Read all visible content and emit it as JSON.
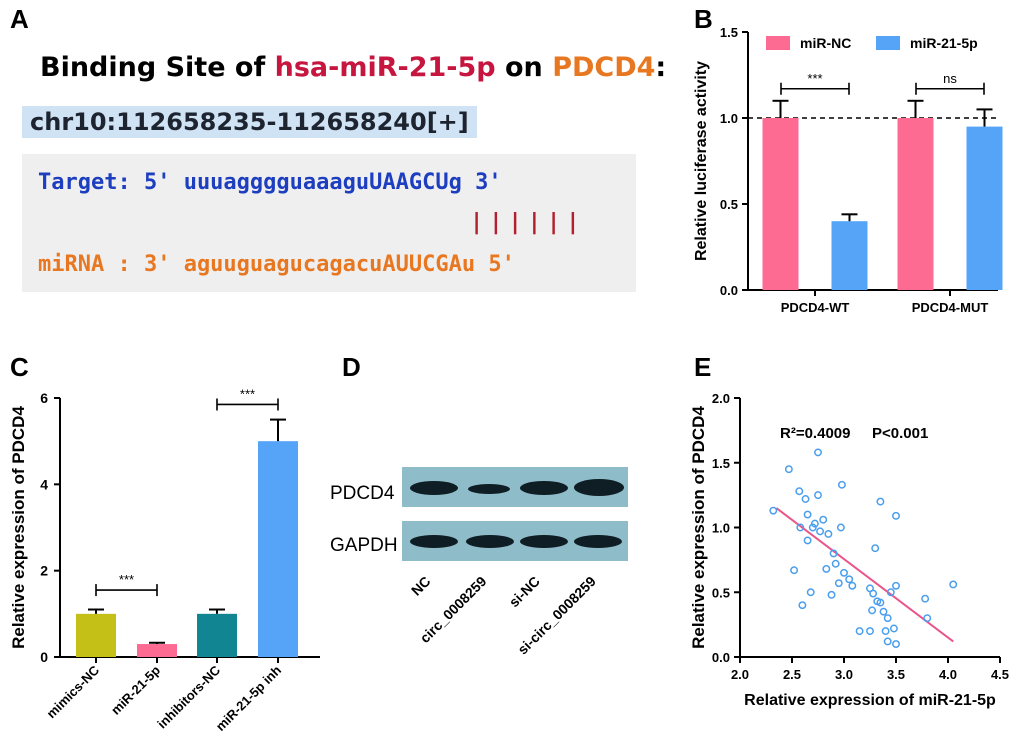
{
  "panels": {
    "a": "A",
    "b": "B",
    "c": "C",
    "d": "D",
    "e": "E"
  },
  "binding": {
    "title_prefix": "Binding Site of ",
    "mirna_name": "hsa-miR-21-5p",
    "title_middle": " on ",
    "gene_name": "PDCD4",
    "title_suffix": ":",
    "locus": "chr10:112658235-112658240[+]",
    "target_line": "Target: 5' uuuagggguaaaguUAAGCUg 3'",
    "pair_marks": "||||||",
    "mirna_line": "miRNA : 3' aguuguagucagacuAUUCGAu 5'"
  },
  "blot": {
    "rows": [
      "PDCD4",
      "GAPDH"
    ],
    "lanes": [
      "NC",
      "circ_0008259",
      "si-NC",
      "si-circ_0008259"
    ]
  },
  "colors": {
    "pink": "#fd6a92",
    "blue": "#56a4f8",
    "olive": "#c4c018",
    "teal": "#118591",
    "fit_line": "#e8558a",
    "scatter_point": "#4a9eee"
  },
  "chart_data": [
    {
      "id": "B",
      "type": "bar",
      "categories": [
        "PDCD4-WT",
        "PDCD4-MUT"
      ],
      "series": [
        {
          "name": "miR-NC",
          "values": [
            1.0,
            1.0
          ],
          "errors": [
            0.1,
            0.1
          ],
          "color": "#fd6a92"
        },
        {
          "name": "miR-21-5p",
          "values": [
            0.4,
            0.95
          ],
          "errors": [
            0.04,
            0.1
          ],
          "color": "#56a4f8"
        }
      ],
      "ylabel": "Relative luciferase activity",
      "ylim": [
        0,
        1.5
      ],
      "yticks": [
        "0.0",
        "0.5",
        "1.0",
        "1.5"
      ],
      "reference_line": 1.0,
      "significance": [
        "***",
        "ns"
      ],
      "legend_position": "top"
    },
    {
      "id": "C",
      "type": "bar",
      "categories": [
        "mimics-NC",
        "miR-21-5p",
        "inhibitors-NC",
        "miR-21-5p inh"
      ],
      "values": [
        1.0,
        0.3,
        1.0,
        5.0
      ],
      "errors": [
        0.1,
        0.03,
        0.1,
        0.5
      ],
      "colors": [
        "#c4c018",
        "#fd6a92",
        "#118591",
        "#56a4f8"
      ],
      "ylabel": "Relative expression of PDCD4",
      "ylim": [
        0,
        6
      ],
      "yticks": [
        "0",
        "2",
        "4",
        "6"
      ],
      "significance": [
        "***",
        "***"
      ]
    },
    {
      "id": "E",
      "type": "scatter",
      "xlabel": "Relative expression of miR-21-5p",
      "ylabel": "Relative expression of PDCD4",
      "xlim": [
        2.0,
        4.5
      ],
      "ylim": [
        0.0,
        2.0
      ],
      "xticks": [
        "2.0",
        "2.5",
        "3.0",
        "3.5",
        "4.0",
        "4.5"
      ],
      "yticks": [
        "0.0",
        "0.5",
        "1.0",
        "1.5",
        "2.0"
      ],
      "annotation_r2": "R²=0.4009",
      "annotation_p": "P<0.001",
      "fit": {
        "x": [
          2.35,
          4.05
        ],
        "y": [
          1.15,
          0.12
        ]
      },
      "points": [
        [
          2.32,
          1.13
        ],
        [
          2.47,
          1.45
        ],
        [
          2.52,
          0.67
        ],
        [
          2.57,
          1.28
        ],
        [
          2.58,
          1.0
        ],
        [
          2.6,
          0.4
        ],
        [
          2.63,
          1.22
        ],
        [
          2.65,
          1.1
        ],
        [
          2.65,
          0.9
        ],
        [
          2.68,
          0.5
        ],
        [
          2.7,
          1.0
        ],
        [
          2.72,
          1.03
        ],
        [
          2.75,
          1.58
        ],
        [
          2.75,
          1.25
        ],
        [
          2.77,
          0.97
        ],
        [
          2.8,
          1.06
        ],
        [
          2.83,
          0.68
        ],
        [
          2.85,
          0.95
        ],
        [
          2.88,
          0.48
        ],
        [
          2.9,
          0.8
        ],
        [
          2.92,
          0.72
        ],
        [
          2.95,
          0.57
        ],
        [
          2.97,
          1.0
        ],
        [
          2.98,
          1.33
        ],
        [
          3.0,
          0.65
        ],
        [
          3.05,
          0.6
        ],
        [
          3.08,
          0.55
        ],
        [
          3.15,
          0.2
        ],
        [
          3.25,
          0.53
        ],
        [
          3.27,
          0.36
        ],
        [
          3.28,
          0.49
        ],
        [
          3.3,
          0.84
        ],
        [
          3.32,
          0.43
        ],
        [
          3.35,
          1.2
        ],
        [
          3.38,
          0.35
        ],
        [
          3.4,
          0.2
        ],
        [
          3.42,
          0.12
        ],
        [
          3.45,
          0.5
        ],
        [
          3.48,
          0.22
        ],
        [
          3.5,
          1.09
        ],
        [
          3.5,
          0.55
        ],
        [
          3.5,
          0.1
        ],
        [
          3.78,
          0.45
        ],
        [
          3.8,
          0.3
        ],
        [
          4.05,
          0.56
        ],
        [
          3.35,
          0.42
        ],
        [
          3.25,
          0.2
        ],
        [
          3.42,
          0.3
        ]
      ]
    }
  ]
}
